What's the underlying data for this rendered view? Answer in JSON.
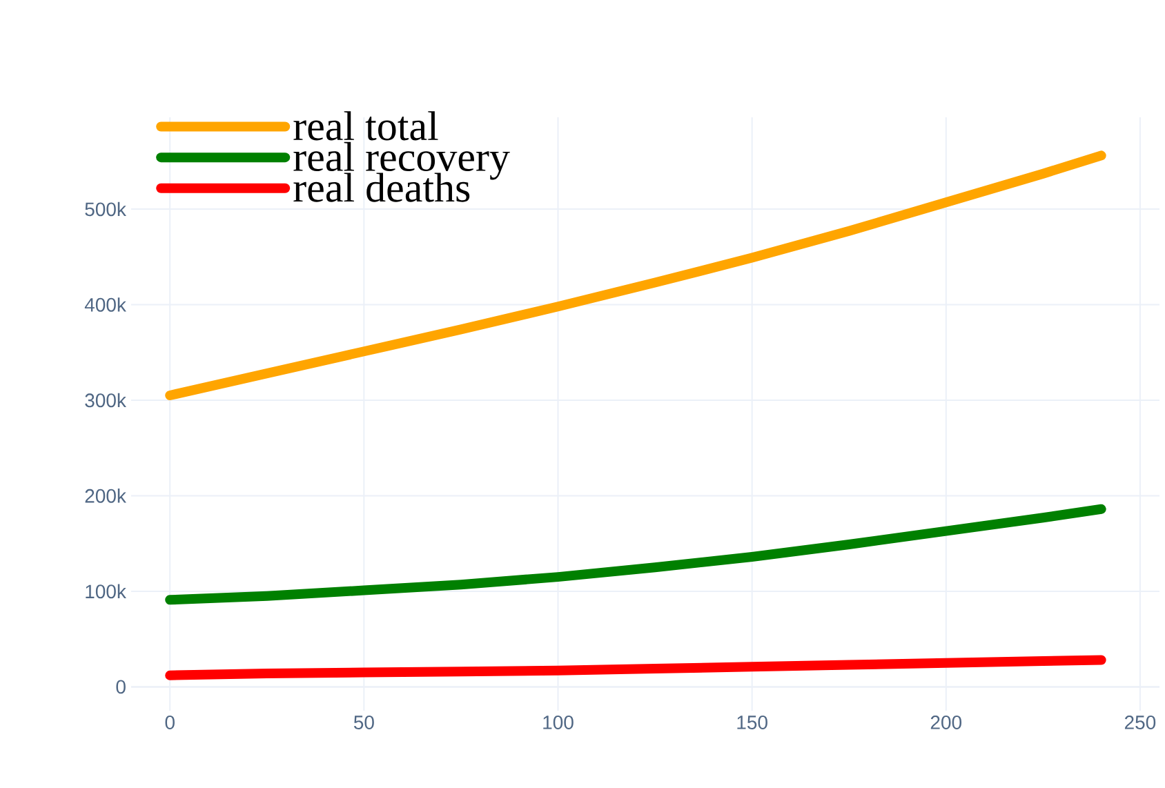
{
  "chart_data": {
    "type": "line",
    "x": [
      0,
      25,
      50,
      75,
      100,
      125,
      150,
      175,
      200,
      225,
      240
    ],
    "series": [
      {
        "name": "real total",
        "color": "#ffa500",
        "values": [
          305000,
          328000,
          351000,
          374000,
          398000,
          423000,
          449000,
          477000,
          507000,
          537000,
          556000
        ]
      },
      {
        "name": "real recovery",
        "color": "#008000",
        "values": [
          91000,
          95000,
          101000,
          107000,
          115000,
          125000,
          136000,
          149000,
          163000,
          177000,
          186000
        ]
      },
      {
        "name": "real deaths",
        "color": "#ff0000",
        "values": [
          12000,
          14000,
          15000,
          16000,
          17000,
          19000,
          21000,
          23000,
          25000,
          27000,
          28000
        ]
      }
    ],
    "xlim": [
      -10,
      255
    ],
    "ylim": [
      -25000,
      596000
    ],
    "xticks": [
      0,
      50,
      100,
      150,
      200,
      250
    ],
    "yticks": [
      0,
      {
        "value": 100000,
        "label": "100k"
      },
      {
        "value": 200000,
        "label": "200k"
      },
      {
        "value": 300000,
        "label": "300k"
      },
      {
        "value": 400000,
        "label": "400k"
      },
      {
        "value": 500000,
        "label": "500k"
      }
    ],
    "grid": true,
    "legend": "top left",
    "marker": "none",
    "line_style": "solid"
  }
}
